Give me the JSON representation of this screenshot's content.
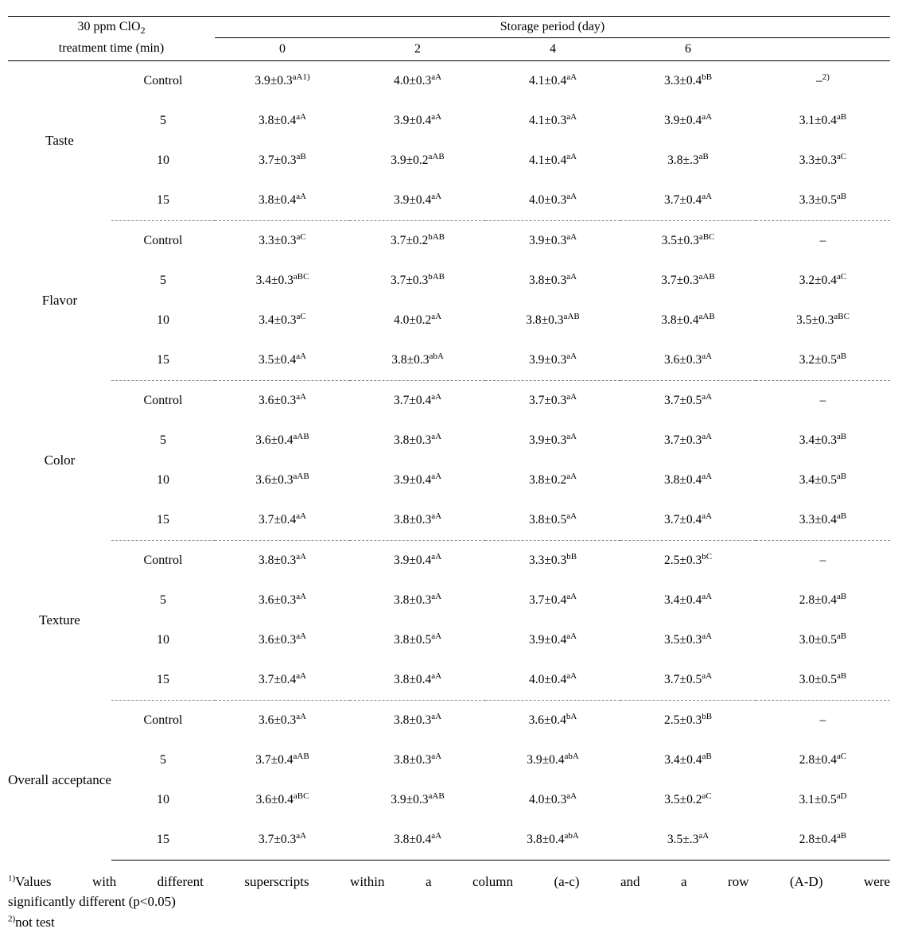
{
  "header": {
    "left_line1": "30 ppm ClO",
    "left_sub": "2",
    "left_line2": "treatment time (min)",
    "storage": "Storage period (day)",
    "days": [
      "0",
      "2",
      "4",
      "6",
      ""
    ]
  },
  "groups": [
    {
      "attr": "Taste",
      "rows": [
        {
          "treat": "Control",
          "vals": [
            {
              "v": "3.9±0.3",
              "s": "aA1)"
            },
            {
              "v": "4.0±0.3",
              "s": "aA"
            },
            {
              "v": "4.1±0.4",
              "s": "aA"
            },
            {
              "v": "3.3±0.4",
              "s": "bB"
            },
            {
              "v": "–",
              "s": "2)"
            }
          ]
        },
        {
          "treat": "5",
          "vals": [
            {
              "v": "3.8±0.4",
              "s": "aA"
            },
            {
              "v": "3.9±0.4",
              "s": "aA"
            },
            {
              "v": "4.1±0.3",
              "s": "aA"
            },
            {
              "v": "3.9±0.4",
              "s": "aA"
            },
            {
              "v": "3.1±0.4",
              "s": "aB"
            }
          ]
        },
        {
          "treat": "10",
          "vals": [
            {
              "v": "3.7±0.3",
              "s": "aB"
            },
            {
              "v": "3.9±0.2",
              "s": "aAB"
            },
            {
              "v": "4.1±0.4",
              "s": "aA"
            },
            {
              "v": "3.8±.3",
              "s": "aB"
            },
            {
              "v": "3.3±0.3",
              "s": "aC"
            }
          ]
        },
        {
          "treat": "15",
          "vals": [
            {
              "v": "3.8±0.4",
              "s": "aA"
            },
            {
              "v": "3.9±0.4",
              "s": "aA"
            },
            {
              "v": "4.0±0.3",
              "s": "aA"
            },
            {
              "v": "3.7±0.4",
              "s": "aA"
            },
            {
              "v": "3.3±0.5",
              "s": "aB"
            }
          ]
        }
      ]
    },
    {
      "attr": "Flavor",
      "rows": [
        {
          "treat": "Control",
          "vals": [
            {
              "v": "3.3±0.3",
              "s": "aC"
            },
            {
              "v": "3.7±0.2",
              "s": "bAB"
            },
            {
              "v": "3.9±0.3",
              "s": "aA"
            },
            {
              "v": "3.5±0.3",
              "s": "aBC"
            },
            {
              "v": "–",
              "s": ""
            }
          ]
        },
        {
          "treat": "5",
          "vals": [
            {
              "v": "3.4±0.3",
              "s": "aBC"
            },
            {
              "v": "3.7±0.3",
              "s": "bAB"
            },
            {
              "v": "3.8±0.3",
              "s": "aA"
            },
            {
              "v": "3.7±0.3",
              "s": "aAB"
            },
            {
              "v": "3.2±0.4",
              "s": "aC"
            }
          ]
        },
        {
          "treat": "10",
          "vals": [
            {
              "v": "3.4±0.3",
              "s": "aC"
            },
            {
              "v": "4.0±0.2",
              "s": "aA"
            },
            {
              "v": "3.8±0.3",
              "s": "aAB"
            },
            {
              "v": "3.8±0.4",
              "s": "aAB"
            },
            {
              "v": "3.5±0.3",
              "s": "aBC"
            }
          ]
        },
        {
          "treat": "15",
          "vals": [
            {
              "v": "3.5±0.4",
              "s": "aA"
            },
            {
              "v": "3.8±0.3",
              "s": "abA"
            },
            {
              "v": "3.9±0.3",
              "s": "aA"
            },
            {
              "v": "3.6±0.3",
              "s": "aA"
            },
            {
              "v": "3.2±0.5",
              "s": "aB"
            }
          ]
        }
      ]
    },
    {
      "attr": "Color",
      "rows": [
        {
          "treat": "Control",
          "vals": [
            {
              "v": "3.6±0.3",
              "s": "aA"
            },
            {
              "v": "3.7±0.4",
              "s": "aA"
            },
            {
              "v": "3.7±0.3",
              "s": "aA"
            },
            {
              "v": "3.7±0.5",
              "s": "aA"
            },
            {
              "v": "–",
              "s": ""
            }
          ]
        },
        {
          "treat": "5",
          "vals": [
            {
              "v": "3.6±0.4",
              "s": "aAB"
            },
            {
              "v": "3.8±0.3",
              "s": "aA"
            },
            {
              "v": "3.9±0.3",
              "s": "aA"
            },
            {
              "v": "3.7±0.3",
              "s": "aA"
            },
            {
              "v": "3.4±0.3",
              "s": "aB"
            }
          ]
        },
        {
          "treat": "10",
          "vals": [
            {
              "v": "3.6±0.3",
              "s": "aAB"
            },
            {
              "v": "3.9±0.4",
              "s": "aA"
            },
            {
              "v": "3.8±0.2",
              "s": "aA"
            },
            {
              "v": "3.8±0.4",
              "s": "aA"
            },
            {
              "v": "3.4±0.5",
              "s": "aB"
            }
          ]
        },
        {
          "treat": "15",
          "vals": [
            {
              "v": "3.7±0.4",
              "s": "aA"
            },
            {
              "v": "3.8±0.3",
              "s": "aA"
            },
            {
              "v": "3.8±0.5",
              "s": "aA"
            },
            {
              "v": "3.7±0.4",
              "s": "aA"
            },
            {
              "v": "3.3±0.4",
              "s": "aB"
            }
          ]
        }
      ]
    },
    {
      "attr": "Texture",
      "rows": [
        {
          "treat": "Control",
          "vals": [
            {
              "v": "3.8±0.3",
              "s": "aA"
            },
            {
              "v": "3.9±0.4",
              "s": "aA"
            },
            {
              "v": "3.3±0.3",
              "s": "bB"
            },
            {
              "v": "2.5±0.3",
              "s": "bC"
            },
            {
              "v": "–",
              "s": ""
            }
          ]
        },
        {
          "treat": "5",
          "vals": [
            {
              "v": "3.6±0.3",
              "s": "aA"
            },
            {
              "v": "3.8±0.3",
              "s": "aA"
            },
            {
              "v": "3.7±0.4",
              "s": "aA"
            },
            {
              "v": "3.4±0.4",
              "s": "aA"
            },
            {
              "v": "2.8±0.4",
              "s": "aB"
            }
          ]
        },
        {
          "treat": "10",
          "vals": [
            {
              "v": "3.6±0.3",
              "s": "aA"
            },
            {
              "v": "3.8±0.5",
              "s": "aA"
            },
            {
              "v": "3.9±0.4",
              "s": "aA"
            },
            {
              "v": "3.5±0.3",
              "s": "aA"
            },
            {
              "v": "3.0±0.5",
              "s": "aB"
            }
          ]
        },
        {
          "treat": "15",
          "vals": [
            {
              "v": "3.7±0.4",
              "s": "aA"
            },
            {
              "v": "3.8±0.4",
              "s": "aA"
            },
            {
              "v": "4.0±0.4",
              "s": "aA"
            },
            {
              "v": "3.7±0.5",
              "s": "aA"
            },
            {
              "v": "3.0±0.5",
              "s": "aB"
            }
          ]
        }
      ]
    },
    {
      "attr": "Overall acceptance",
      "rows": [
        {
          "treat": "Control",
          "vals": [
            {
              "v": "3.6±0.3",
              "s": "aA"
            },
            {
              "v": "3.8±0.3",
              "s": "aA"
            },
            {
              "v": "3.6±0.4",
              "s": "bA"
            },
            {
              "v": "2.5±0.3",
              "s": "bB"
            },
            {
              "v": "–",
              "s": ""
            }
          ]
        },
        {
          "treat": "5",
          "vals": [
            {
              "v": "3.7±0.4",
              "s": "aAB"
            },
            {
              "v": "3.8±0.3",
              "s": "aA"
            },
            {
              "v": "3.9±0.4",
              "s": "abA"
            },
            {
              "v": "3.4±0.4",
              "s": "aB"
            },
            {
              "v": "2.8±0.4",
              "s": "aC"
            }
          ]
        },
        {
          "treat": "10",
          "vals": [
            {
              "v": "3.6±0.4",
              "s": "aBC"
            },
            {
              "v": "3.9±0.3",
              "s": "aAB"
            },
            {
              "v": "4.0±0.3",
              "s": "aA"
            },
            {
              "v": "3.5±0.2",
              "s": "aC"
            },
            {
              "v": "3.1±0.5",
              "s": "aD"
            }
          ]
        },
        {
          "treat": "15",
          "vals": [
            {
              "v": "3.7±0.3",
              "s": "aA"
            },
            {
              "v": "3.8±0.4",
              "s": "aA"
            },
            {
              "v": "3.8±0.4",
              "s": "abA"
            },
            {
              "v": "3.5±.3",
              "s": "aA"
            },
            {
              "v": "2.8±0.4",
              "s": "aB"
            }
          ]
        }
      ]
    }
  ],
  "footnotes": {
    "fn1_words": [
      "Values",
      "with",
      "different",
      "superscripts",
      "within",
      "a",
      "column",
      "(a-c)",
      "and",
      "a",
      "row",
      "(A-D)",
      "were"
    ],
    "fn1_line2": "significantly different (p<0.05)",
    "fn2": "not test"
  }
}
